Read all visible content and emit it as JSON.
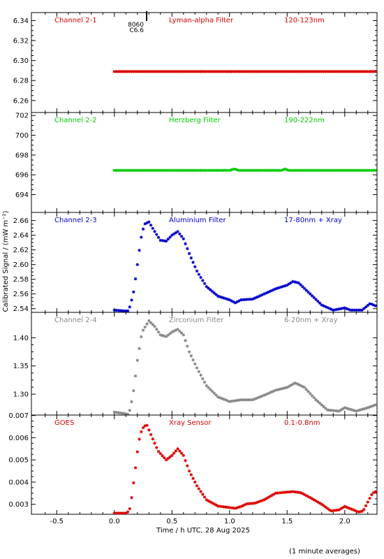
{
  "ylabel": "Calibrated Signal / (mW m⁻²)",
  "xlabel": "Time / h UTC, 28 Aug 2025",
  "footnote": "(1 minute averages)",
  "x_ticks": [
    "-0.5",
    "0.0",
    "0.5",
    "1.0",
    "1.5",
    "2.0"
  ],
  "flare_annotation": {
    "x": 0.28,
    "lines": [
      "8060",
      "C6.6"
    ]
  },
  "chart_data": [
    {
      "type": "scatter",
      "channel": "Channel 2-1",
      "filter": "Lyman-alpha Filter",
      "band": "120-123nm",
      "color": "#dd0000",
      "xlim": [
        -0.72,
        2.28
      ],
      "ylim": [
        6.248,
        6.348
      ],
      "yticks": [
        6.26,
        6.28,
        6.3,
        6.32,
        6.34
      ],
      "ytick_labels": [
        "6.26",
        "6.28",
        "6.30",
        "6.32",
        "6.34"
      ],
      "points": [
        [
          0.0,
          6.289
        ],
        [
          2.28,
          6.289
        ]
      ]
    },
    {
      "type": "scatter",
      "channel": "Channel 2-2",
      "filter": "Herzberg Filter",
      "band": "190-222nm",
      "color": "#00cc00",
      "xlim": [
        -0.72,
        2.28
      ],
      "ylim": [
        692.2,
        702.3
      ],
      "yticks": [
        694,
        696,
        698,
        700,
        702
      ],
      "ytick_labels": [
        "694",
        "696",
        "698",
        "700",
        "702"
      ],
      "points": [
        [
          0.0,
          696.45
        ],
        [
          1.0,
          696.45
        ],
        [
          1.04,
          696.6
        ],
        [
          1.08,
          696.45
        ],
        [
          1.45,
          696.45
        ],
        [
          1.48,
          696.6
        ],
        [
          1.51,
          696.45
        ],
        [
          2.28,
          696.45
        ]
      ]
    },
    {
      "type": "scatter",
      "channel": "Channel 2-3",
      "filter": "Aluminium Filter",
      "band": "17-80nm + Xray",
      "color": "#0000cc",
      "xlim": [
        -0.72,
        2.28
      ],
      "ylim": [
        2.535,
        2.671
      ],
      "yticks": [
        2.54,
        2.56,
        2.58,
        2.6,
        2.62,
        2.64,
        2.66
      ],
      "ytick_labels": [
        "2.54",
        "2.56",
        "2.58",
        "2.60",
        "2.62",
        "2.64",
        "2.66"
      ],
      "points": [
        [
          0.0,
          2.538
        ],
        [
          0.08,
          2.537
        ],
        [
          0.12,
          2.537
        ],
        [
          0.14,
          2.545
        ],
        [
          0.17,
          2.565
        ],
        [
          0.2,
          2.6
        ],
        [
          0.23,
          2.635
        ],
        [
          0.26,
          2.655
        ],
        [
          0.3,
          2.658
        ],
        [
          0.35,
          2.645
        ],
        [
          0.4,
          2.633
        ],
        [
          0.45,
          2.632
        ],
        [
          0.5,
          2.64
        ],
        [
          0.55,
          2.645
        ],
        [
          0.6,
          2.635
        ],
        [
          0.65,
          2.615
        ],
        [
          0.72,
          2.59
        ],
        [
          0.8,
          2.57
        ],
        [
          0.9,
          2.557
        ],
        [
          1.0,
          2.552
        ],
        [
          1.05,
          2.548
        ],
        [
          1.1,
          2.552
        ],
        [
          1.2,
          2.553
        ],
        [
          1.3,
          2.56
        ],
        [
          1.4,
          2.567
        ],
        [
          1.5,
          2.572
        ],
        [
          1.55,
          2.577
        ],
        [
          1.6,
          2.575
        ],
        [
          1.7,
          2.56
        ],
        [
          1.8,
          2.545
        ],
        [
          1.9,
          2.538
        ],
        [
          2.0,
          2.541
        ],
        [
          2.05,
          2.538
        ],
        [
          2.15,
          2.538
        ],
        [
          2.22,
          2.547
        ],
        [
          2.28,
          2.543
        ]
      ]
    },
    {
      "type": "scatter",
      "channel": "Channel 2-4",
      "filter": "Zirconium Filter",
      "band": "6-20nm + Xray",
      "color": "#888888",
      "xlim": [
        -0.72,
        2.28
      ],
      "ylim": [
        1.263,
        1.445
      ],
      "yticks": [
        1.3,
        1.35,
        1.4
      ],
      "ytick_labels": [
        "1.30",
        "1.35",
        "1.40"
      ],
      "points": [
        [
          0.0,
          1.268
        ],
        [
          0.08,
          1.266
        ],
        [
          0.12,
          1.264
        ],
        [
          0.14,
          1.275
        ],
        [
          0.17,
          1.31
        ],
        [
          0.2,
          1.36
        ],
        [
          0.24,
          1.41
        ],
        [
          0.3,
          1.43
        ],
        [
          0.35,
          1.42
        ],
        [
          0.4,
          1.405
        ],
        [
          0.45,
          1.402
        ],
        [
          0.5,
          1.41
        ],
        [
          0.55,
          1.415
        ],
        [
          0.6,
          1.405
        ],
        [
          0.65,
          1.375
        ],
        [
          0.72,
          1.345
        ],
        [
          0.8,
          1.315
        ],
        [
          0.9,
          1.295
        ],
        [
          1.0,
          1.287
        ],
        [
          1.1,
          1.29
        ],
        [
          1.2,
          1.29
        ],
        [
          1.3,
          1.298
        ],
        [
          1.4,
          1.307
        ],
        [
          1.5,
          1.312
        ],
        [
          1.57,
          1.32
        ],
        [
          1.65,
          1.312
        ],
        [
          1.75,
          1.29
        ],
        [
          1.85,
          1.272
        ],
        [
          1.95,
          1.27
        ],
        [
          2.0,
          1.276
        ],
        [
          2.1,
          1.27
        ],
        [
          2.2,
          1.276
        ],
        [
          2.28,
          1.282
        ]
      ]
    },
    {
      "type": "scatter",
      "channel": "GOES",
      "filter": "Xray Sensor",
      "band": "0.1-0.8nm",
      "color": "#dd0000",
      "xlim": [
        -0.72,
        2.28
      ],
      "ylim": [
        0.00255,
        0.00702
      ],
      "yticks": [
        0.003,
        0.004,
        0.005,
        0.006,
        0.007
      ],
      "ytick_labels": [
        "0.003",
        "0.004",
        "0.005",
        "0.006",
        "0.007"
      ],
      "points": [
        [
          0.0,
          0.0026
        ],
        [
          0.1,
          0.0026
        ],
        [
          0.13,
          0.0027
        ],
        [
          0.15,
          0.0033
        ],
        [
          0.18,
          0.0045
        ],
        [
          0.21,
          0.0058
        ],
        [
          0.24,
          0.0064
        ],
        [
          0.28,
          0.0066
        ],
        [
          0.32,
          0.0061
        ],
        [
          0.38,
          0.0054
        ],
        [
          0.45,
          0.005
        ],
        [
          0.5,
          0.0052
        ],
        [
          0.55,
          0.0055
        ],
        [
          0.6,
          0.0052
        ],
        [
          0.65,
          0.0045
        ],
        [
          0.72,
          0.0038
        ],
        [
          0.8,
          0.0032
        ],
        [
          0.9,
          0.00292
        ],
        [
          1.0,
          0.00285
        ],
        [
          1.05,
          0.00282
        ],
        [
          1.1,
          0.0029
        ],
        [
          1.15,
          0.00302
        ],
        [
          1.22,
          0.00305
        ],
        [
          1.3,
          0.0032
        ],
        [
          1.4,
          0.0035
        ],
        [
          1.5,
          0.00355
        ],
        [
          1.55,
          0.00357
        ],
        [
          1.62,
          0.00352
        ],
        [
          1.7,
          0.0033
        ],
        [
          1.8,
          0.003
        ],
        [
          1.88,
          0.0027
        ],
        [
          1.95,
          0.00275
        ],
        [
          2.0,
          0.0029
        ],
        [
          2.05,
          0.0028
        ],
        [
          2.12,
          0.00265
        ],
        [
          2.16,
          0.0027
        ],
        [
          2.2,
          0.0031
        ],
        [
          2.24,
          0.0035
        ],
        [
          2.28,
          0.0036
        ]
      ]
    }
  ]
}
